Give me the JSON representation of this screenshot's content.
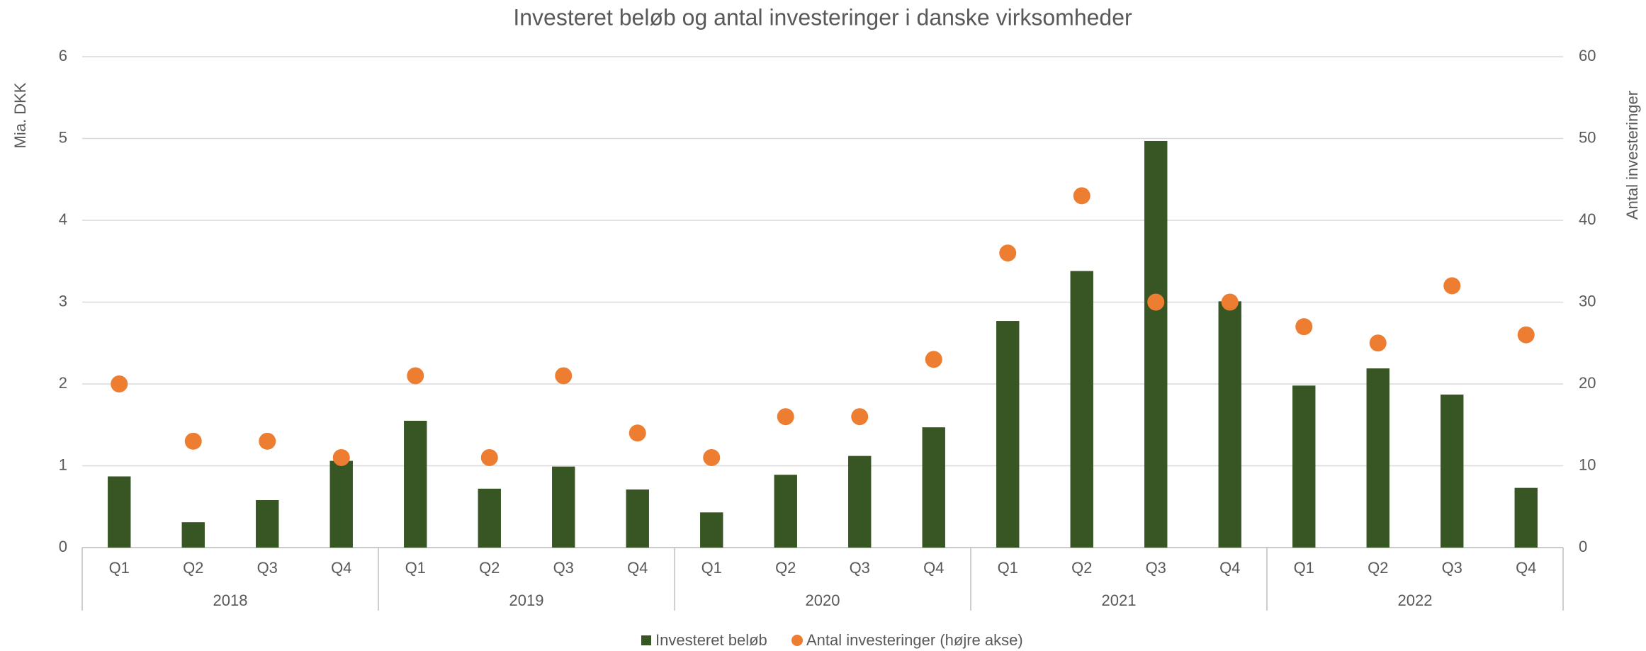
{
  "chart_data": {
    "type": "bar_scatter",
    "title": "Investeret beløb og antal investeringer i danske virksomheder",
    "y_label": "Mia. DKK",
    "y2_label": "Antal investeringer",
    "categories": [
      "Q1",
      "Q2",
      "Q3",
      "Q4",
      "Q1",
      "Q2",
      "Q3",
      "Q4",
      "Q1",
      "Q2",
      "Q3",
      "Q4",
      "Q1",
      "Q2",
      "Q3",
      "Q4",
      "Q1",
      "Q2",
      "Q3",
      "Q4"
    ],
    "years": [
      "2018",
      "2019",
      "2020",
      "2021",
      "2022"
    ],
    "series": [
      {
        "name": "Investeret beløb",
        "type": "bar",
        "color": "#375623",
        "values": [
          0.87,
          0.31,
          0.58,
          1.06,
          1.55,
          0.72,
          0.99,
          0.71,
          0.43,
          0.89,
          1.12,
          1.47,
          2.77,
          3.38,
          4.97,
          3.01,
          1.98,
          2.19,
          1.87,
          0.73
        ]
      },
      {
        "name": "Antal investeringer (højre akse)",
        "type": "scatter",
        "axis": "y2",
        "color": "#ed7d31",
        "values": [
          20,
          13,
          13,
          11,
          21,
          11,
          21,
          14,
          11,
          16,
          16,
          23,
          36,
          43,
          30,
          30,
          27,
          25,
          32,
          26
        ]
      }
    ],
    "ylim": [
      0,
      6
    ],
    "yticks": [
      0,
      1,
      2,
      3,
      4,
      5,
      6
    ],
    "y2lim": [
      0,
      60
    ],
    "y2ticks": [
      0,
      10,
      20,
      30,
      40,
      50,
      60
    ],
    "grid": true,
    "legend": "bottom"
  }
}
